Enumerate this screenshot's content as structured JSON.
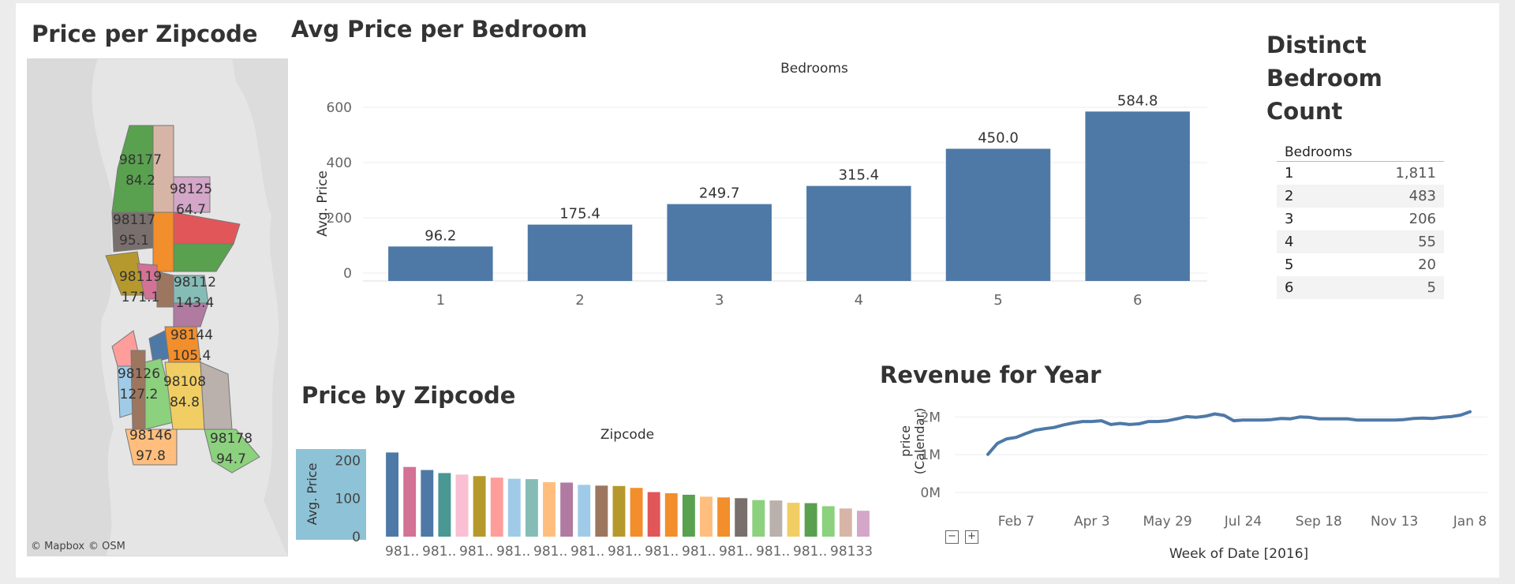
{
  "titles": {
    "map": "Price per Zipcode",
    "bedroom": "Avg Price per Bedroom",
    "distinct": [
      "Distinct",
      "Bedroom",
      "Count"
    ],
    "zipbar": "Price by Zipcode",
    "revenue": "Revenue for Year"
  },
  "map": {
    "attribution": [
      "© Mapbox",
      "© OSM"
    ],
    "regions": [
      {
        "zip": "98177",
        "value": "84.2",
        "color": "#59a14f"
      },
      {
        "zip": "98125",
        "value": "64.7",
        "color": "#d4a6c8"
      },
      {
        "zip": "98117",
        "value": "95.1",
        "color": "#79706e"
      },
      {
        "zip": "98119",
        "value": "171.1",
        "color": "#b6992d"
      },
      {
        "zip": "98112",
        "value": "143.4",
        "color": "#86bcb6"
      },
      {
        "zip": "98144",
        "value": "105.4",
        "color": "#f28e2b"
      },
      {
        "zip": "98126",
        "value": "127.2",
        "color": "#ff9d9a"
      },
      {
        "zip": "98108",
        "value": "84.8",
        "color": "#f1ce63"
      },
      {
        "zip": "98146",
        "value": "97.8",
        "color": "#ffbe7d"
      },
      {
        "zip": "98178",
        "value": "94.7",
        "color": "#8cd17d"
      }
    ]
  },
  "bedroom_chart": {
    "type": "bar",
    "column_header": "Bedrooms",
    "ylabel": "Avg. Price",
    "categories": [
      "1",
      "2",
      "3",
      "4",
      "5",
      "6"
    ],
    "values": [
      96.2,
      175.4,
      249.7,
      315.4,
      450.0,
      584.8
    ],
    "value_labels": [
      "96.2",
      "175.4",
      "249.7",
      "315.4",
      "450.0",
      "584.8"
    ],
    "ylim": [
      0,
      680
    ],
    "yticks": [
      0,
      200,
      400,
      600
    ],
    "color": "#4e79a7"
  },
  "count_table": {
    "header": "Bedrooms",
    "rows": [
      {
        "bedrooms": "1",
        "count": "1,811"
      },
      {
        "bedrooms": "2",
        "count": "483"
      },
      {
        "bedrooms": "3",
        "count": "206"
      },
      {
        "bedrooms": "4",
        "count": "55"
      },
      {
        "bedrooms": "5",
        "count": "20"
      },
      {
        "bedrooms": "6",
        "count": "5"
      }
    ]
  },
  "zip_chart": {
    "type": "bar",
    "column_header": "Zipcode",
    "ylabel": "Avg. Price",
    "yticks": [
      0,
      100,
      200
    ],
    "ylim": [
      0,
      230
    ],
    "values": [
      221,
      183,
      175,
      167,
      163,
      159,
      155,
      152,
      151,
      143,
      142,
      136,
      134,
      133,
      128,
      117,
      114,
      110,
      105,
      103,
      101,
      96,
      95,
      89,
      88,
      80,
      74,
      68
    ],
    "colors": [
      "#4e79a7",
      "#d37295",
      "#4e79a7",
      "#499894",
      "#fabfd2",
      "#b6992d",
      "#ff9d9a",
      "#a0cbe8",
      "#86bcb6",
      "#ffbe7d",
      "#b07aa1",
      "#a0cbe8",
      "#9d7660",
      "#b6992d",
      "#f28e2b",
      "#e15759",
      "#f28e2b",
      "#59a14f",
      "#ffbe7d",
      "#f28e2b",
      "#79706e",
      "#8cd17d",
      "#bab0ac",
      "#f1ce63",
      "#59a14f",
      "#8cd17d",
      "#d7b5a6",
      "#d4a6c8"
    ],
    "tick_labels": [
      "981..",
      "981..",
      "981..",
      "981..",
      "981..",
      "981..",
      "981..",
      "981..",
      "981..",
      "981..",
      "981..",
      "981..",
      "98133"
    ]
  },
  "revenue_chart": {
    "type": "line",
    "ylabel": "price\n(Calendar)",
    "xlabel": "Week of Date [2016]",
    "yticks": [
      "0M",
      "1M",
      "2M"
    ],
    "ylim": [
      0,
      2300000
    ],
    "x_tick_labels": [
      "Feb 7",
      "Apr 3",
      "May 29",
      "Jul 24",
      "Sep 18",
      "Nov 13",
      "Jan 8"
    ],
    "x_tick_weeks": [
      5,
      13,
      21,
      29,
      37,
      45,
      53
    ],
    "series": [
      {
        "values": [
          1010000,
          1300000,
          1420000,
          1460000,
          1560000,
          1650000,
          1690000,
          1720000,
          1790000,
          1840000,
          1880000,
          1880000,
          1900000,
          1800000,
          1830000,
          1800000,
          1820000,
          1880000,
          1880000,
          1900000,
          1950000,
          2010000,
          1990000,
          2020000,
          2080000,
          2040000,
          1900000,
          1920000,
          1920000,
          1920000,
          1930000,
          1960000,
          1950000,
          2000000,
          1990000,
          1950000,
          1950000,
          1950000,
          1950000,
          1920000,
          1920000,
          1920000,
          1920000,
          1920000,
          1930000,
          1960000,
          1970000,
          1960000,
          1990000,
          2010000,
          2050000,
          2140000
        ]
      }
    ],
    "color": "#4e79a7",
    "zoom_controls": [
      "−",
      "+"
    ]
  }
}
